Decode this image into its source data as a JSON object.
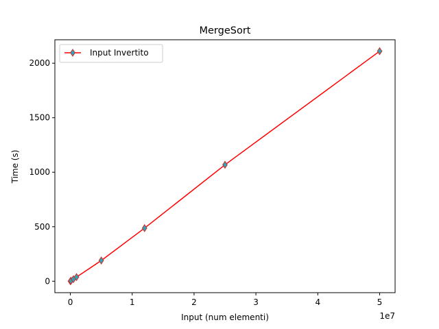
{
  "chart_data": {
    "type": "line",
    "title": "MergeSort",
    "xlabel": "Input (num elementi)",
    "ylabel": "Time (s)",
    "x_offset_label": "1e7",
    "xlim": [
      -2500000,
      52500000
    ],
    "ylim": [
      -105,
      2215
    ],
    "x_ticks": [
      0,
      10000000,
      20000000,
      30000000,
      40000000,
      50000000
    ],
    "x_tick_labels": [
      "0",
      "1",
      "2",
      "3",
      "4",
      "5"
    ],
    "y_ticks": [
      0,
      500,
      1000,
      1500,
      2000
    ],
    "y_tick_labels": [
      "0",
      "500",
      "1000",
      "1500",
      "2000"
    ],
    "grid": false,
    "legend_position": "top-left",
    "series": [
      {
        "name": "Input Invertito",
        "line_color": "#ff0000",
        "marker": "diamond",
        "marker_face_color": "#2aa8b8",
        "marker_edge_color": "#d62728",
        "x": [
          10000,
          100000,
          500000,
          1000000,
          5000000,
          12000000,
          25000000,
          50000000
        ],
        "y": [
          0.4,
          3.8,
          19,
          38,
          190,
          487,
          1068,
          2110
        ]
      }
    ]
  }
}
